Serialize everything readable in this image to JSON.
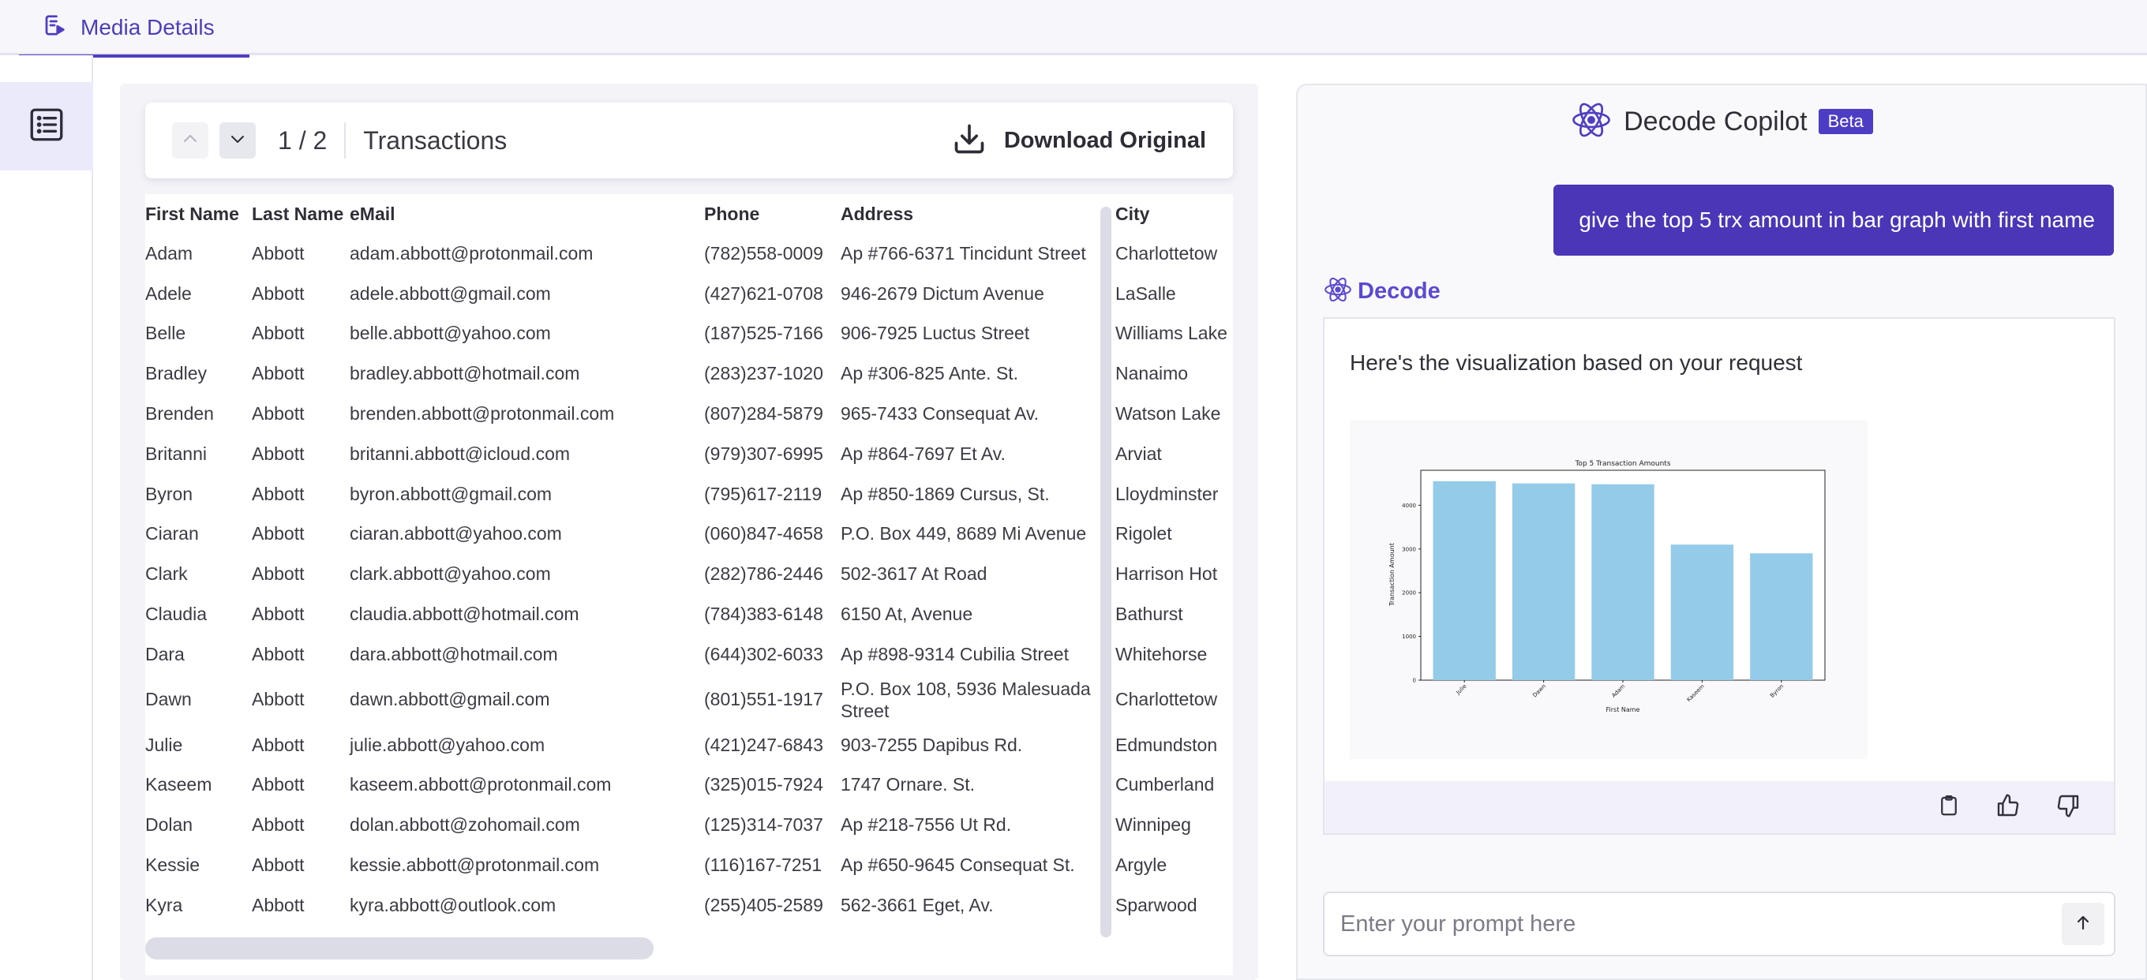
{
  "tab": {
    "label": "Media Details",
    "icon": "media-details-icon"
  },
  "rail": {
    "icon": "list-icon"
  },
  "document": {
    "page_current": "1",
    "page_total": "2",
    "page_counter": "1 / 2",
    "title": "Transactions",
    "download_label": "Download Original",
    "columns": [
      "First Name",
      "Last Name",
      "eMail",
      "Phone",
      "Address",
      "City"
    ],
    "rows": [
      [
        "Adam",
        "Abbott",
        "adam.abbott@protonmail.com",
        "(782)558-0009",
        "Ap #766-6371 Tincidunt Street",
        "Charlottetow"
      ],
      [
        "Adele",
        "Abbott",
        "adele.abbott@gmail.com",
        "(427)621-0708",
        "946-2679 Dictum Avenue",
        "LaSalle"
      ],
      [
        "Belle",
        "Abbott",
        "belle.abbott@yahoo.com",
        "(187)525-7166",
        "906-7925 Luctus Street",
        "Williams Lake"
      ],
      [
        "Bradley",
        "Abbott",
        "bradley.abbott@hotmail.com",
        "(283)237-1020",
        "Ap #306-825 Ante. St.",
        "Nanaimo"
      ],
      [
        "Brenden",
        "Abbott",
        "brenden.abbott@protonmail.com",
        "(807)284-5879",
        "965-7433 Consequat Av.",
        "Watson Lake"
      ],
      [
        "Britanni",
        "Abbott",
        "britanni.abbott@icloud.com",
        "(979)307-6995",
        "Ap #864-7697 Et Av.",
        "Arviat"
      ],
      [
        "Byron",
        "Abbott",
        "byron.abbott@gmail.com",
        "(795)617-2119",
        "Ap #850-1869 Cursus, St.",
        "Lloydminster"
      ],
      [
        "Ciaran",
        "Abbott",
        "ciaran.abbott@yahoo.com",
        "(060)847-4658",
        "P.O. Box 449, 8689 Mi Avenue",
        "Rigolet"
      ],
      [
        "Clark",
        "Abbott",
        "clark.abbott@yahoo.com",
        "(282)786-2446",
        "502-3617 At Road",
        "Harrison Hot"
      ],
      [
        "Claudia",
        "Abbott",
        "claudia.abbott@hotmail.com",
        "(784)383-6148",
        "6150 At, Avenue",
        "Bathurst"
      ],
      [
        "Dara",
        "Abbott",
        "dara.abbott@hotmail.com",
        "(644)302-6033",
        "Ap #898-9314 Cubilia Street",
        "Whitehorse"
      ],
      [
        "Dawn",
        "Abbott",
        "dawn.abbott@gmail.com",
        "(801)551-1917",
        "P.O. Box 108, 5936 Malesuada Street",
        "Charlottetow"
      ],
      [
        "Julie",
        "Abbott",
        "julie.abbott@yahoo.com",
        "(421)247-6843",
        "903-7255 Dapibus Rd.",
        "Edmundston"
      ],
      [
        "Kaseem",
        "Abbott",
        "kaseem.abbott@protonmail.com",
        "(325)015-7924",
        "1747 Ornare. St.",
        "Cumberland"
      ],
      [
        "Dolan",
        "Abbott",
        "dolan.abbott@zohomail.com",
        "(125)314-7037",
        "Ap #218-7556 Ut Rd.",
        "Winnipeg"
      ],
      [
        "Kessie",
        "Abbott",
        "kessie.abbott@protonmail.com",
        "(116)167-7251",
        "Ap #650-9645 Consequat St.",
        "Argyle"
      ],
      [
        "Kyra",
        "Abbott",
        "kyra.abbott@outlook.com",
        "(255)405-2589",
        "562-3661 Eget, Av.",
        "Sparwood"
      ]
    ]
  },
  "copilot": {
    "title": "Decode Copilot",
    "badge": "Beta",
    "user_message": "give the top 5 trx amount in bar graph with first name",
    "assistant_name": "Decode",
    "assistant_text": "Here's the visualization based on your request",
    "prompt_placeholder": "Enter your prompt here",
    "colors": {
      "accent": "#4b36b8",
      "bar": "#93cbe8"
    }
  },
  "chart_data": {
    "type": "bar",
    "title": "Top 5 Transaction Amounts",
    "xlabel": "First Name",
    "ylabel": "Transaction Amount",
    "categories": [
      "Julie",
      "Dawn",
      "Adam",
      "Kaseem",
      "Byron"
    ],
    "values": [
      4550,
      4500,
      4480,
      3100,
      2900
    ],
    "ylim": [
      0,
      4800
    ],
    "yticks": [
      0,
      1000,
      2000,
      3000,
      4000
    ],
    "grid": false
  }
}
